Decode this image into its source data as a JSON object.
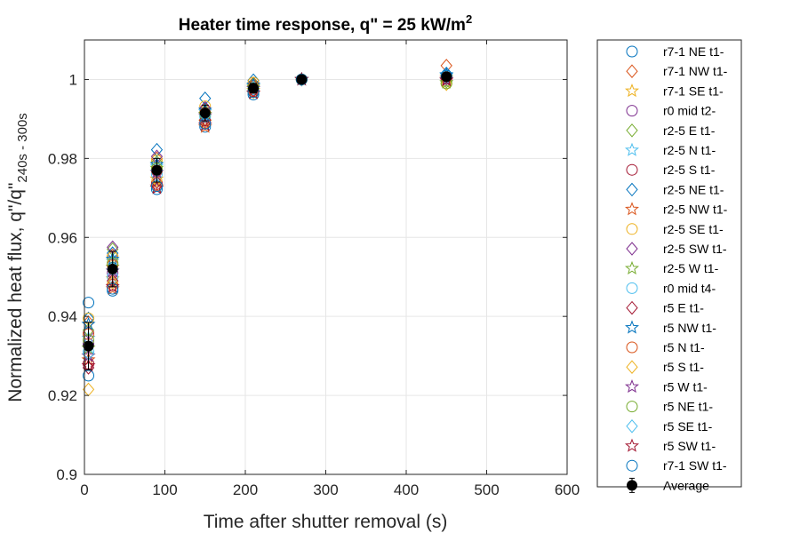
{
  "chart_data": {
    "type": "scatter",
    "title": "Heater time response, q\" = 25 kW/m",
    "title_sup": "2",
    "xlabel": "Time after shutter removal (s)",
    "ylabel_main": "Normalized heat flux, q\"/q\"",
    "ylabel_sub": "240s - 300s",
    "xlim": [
      0,
      600
    ],
    "ylim": [
      0.9,
      1.01
    ],
    "xticks": [
      0,
      100,
      200,
      300,
      400,
      500,
      600
    ],
    "yticks": [
      0.9,
      0.92,
      0.94,
      0.96,
      0.98,
      1
    ],
    "xtick_labels": [
      "0",
      "100",
      "200",
      "300",
      "400",
      "500",
      "600"
    ],
    "ytick_labels": [
      "0.9",
      "0.92",
      "0.94",
      "0.96",
      "0.98",
      "1"
    ],
    "grid": true,
    "legend_position": "outside-right",
    "x": [
      5,
      35,
      90,
      150,
      210,
      270,
      450
    ],
    "series": [
      {
        "name": "r7-1 NE t1-",
        "marker": "circle",
        "color": "#0072BD",
        "values": [
          0.9435,
          0.9465,
          0.9722,
          0.988,
          0.9962,
          1.0,
          1.0008
        ]
      },
      {
        "name": "r7-1 NW t1-",
        "marker": "diamond",
        "color": "#D95319",
        "values": [
          0.9385,
          0.9555,
          0.98,
          0.9925,
          0.999,
          1.0,
          1.0035
        ]
      },
      {
        "name": "r7-1 SE t1-",
        "marker": "star",
        "color": "#EDB120",
        "values": [
          0.93,
          0.9495,
          0.9748,
          0.9892,
          0.9972,
          1.0,
          1.0005
        ]
      },
      {
        "name": "r0 mid t2-",
        "marker": "circle",
        "color": "#7E2F8E",
        "values": [
          0.933,
          0.951,
          0.9768,
          0.991,
          0.9978,
          1.0,
          1.0002
        ]
      },
      {
        "name": "r2-5 E t1-",
        "marker": "diamond",
        "color": "#77AC30",
        "values": [
          0.9365,
          0.957,
          0.979,
          0.992,
          0.9988,
          1.0,
          0.9995
        ]
      },
      {
        "name": "r2-5 N t1-",
        "marker": "star",
        "color": "#4DBEEE",
        "values": [
          0.9345,
          0.954,
          0.978,
          0.9918,
          0.9983,
          1.0,
          1.001
        ]
      },
      {
        "name": "r2-5 S t1-",
        "marker": "circle",
        "color": "#A2142F",
        "values": [
          0.928,
          0.948,
          0.9735,
          0.9895,
          0.997,
          1.0,
          1.0003
        ]
      },
      {
        "name": "r2-5 NE t1-",
        "marker": "diamond",
        "color": "#0072BD",
        "values": [
          0.9395,
          0.956,
          0.9822,
          0.9952,
          0.9998,
          1.0,
          1.0015
        ]
      },
      {
        "name": "r2-5 NW t1-",
        "marker": "star",
        "color": "#D95319",
        "values": [
          0.929,
          0.947,
          0.9728,
          0.988,
          0.9965,
          1.0,
          1.0
        ]
      },
      {
        "name": "r2-5 SE t1-",
        "marker": "circle",
        "color": "#EDB120",
        "values": [
          0.9395,
          0.955,
          0.9795,
          0.9932,
          0.9992,
          1.0,
          0.999
        ]
      },
      {
        "name": "r2-5 SW t1-",
        "marker": "diamond",
        "color": "#7E2F8E",
        "values": [
          0.936,
          0.9575,
          0.9805,
          0.9928,
          0.9985,
          1.0,
          1.0005
        ]
      },
      {
        "name": "r2-5 W t1-",
        "marker": "star",
        "color": "#77AC30",
        "values": [
          0.932,
          0.9525,
          0.9775,
          0.9912,
          0.998,
          1.0,
          0.9992
        ]
      },
      {
        "name": "r0 mid t4-",
        "marker": "circle",
        "color": "#4DBEEE",
        "values": [
          0.931,
          0.95,
          0.976,
          0.9905,
          0.9975,
          1.0,
          1.0008
        ]
      },
      {
        "name": "r5 E t1-",
        "marker": "diamond",
        "color": "#A2142F",
        "values": [
          0.927,
          0.949,
          0.974,
          0.9898,
          0.9972,
          1.0,
          1.0002
        ]
      },
      {
        "name": "r5 NW t1-",
        "marker": "star",
        "color": "#0072BD",
        "values": [
          0.938,
          0.9545,
          0.9785,
          0.9922,
          0.9986,
          1.0,
          1.0012
        ]
      },
      {
        "name": "r5 N t1-",
        "marker": "circle",
        "color": "#D95319",
        "values": [
          0.9355,
          0.953,
          0.977,
          0.9915,
          0.9982,
          1.0,
          1.0006
        ]
      },
      {
        "name": "r5 S t1-",
        "marker": "diamond",
        "color": "#EDB120",
        "values": [
          0.9215,
          0.9485,
          0.9745,
          0.989,
          0.9968,
          1.0,
          0.9988
        ]
      },
      {
        "name": "r5 W t1-",
        "marker": "star",
        "color": "#7E2F8E",
        "values": [
          0.93,
          0.9515,
          0.9765,
          0.9908,
          0.9977,
          1.0,
          1.0
        ]
      },
      {
        "name": "r5 NE t1-",
        "marker": "circle",
        "color": "#77AC30",
        "values": [
          0.934,
          0.9535,
          0.9775,
          0.9912,
          0.9979,
          1.0,
          0.999
        ]
      },
      {
        "name": "r5 SE t1-",
        "marker": "diamond",
        "color": "#4DBEEE",
        "values": [
          0.9305,
          0.952,
          0.977,
          0.991,
          0.998,
          1.0,
          1.0004
        ]
      },
      {
        "name": "r5 SW t1-",
        "marker": "star",
        "color": "#A2142F",
        "values": [
          0.9275,
          0.9475,
          0.9725,
          0.9885,
          0.9966,
          1.0,
          0.9998
        ]
      },
      {
        "name": "r7-1 SW t1-",
        "marker": "circle",
        "color": "#0072BD",
        "values": [
          0.925,
          0.947,
          0.973,
          0.9888,
          0.9968,
          1.0,
          1.001
        ]
      },
      {
        "name": "Average",
        "marker": "filled-circle",
        "color": "#000000",
        "values": [
          0.9325,
          0.952,
          0.977,
          0.9915,
          0.9978,
          1.0,
          1.0007
        ],
        "error": [
          0.006,
          0.0045,
          0.003,
          0.002,
          0.0012,
          0.0,
          0.001
        ]
      }
    ]
  }
}
